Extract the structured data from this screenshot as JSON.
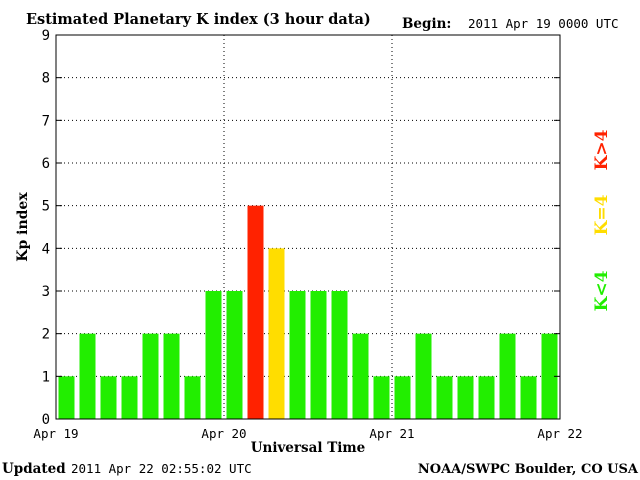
{
  "header": {
    "title": "Estimated Planetary K index (3 hour data)",
    "begin_label": "Begin:",
    "begin_value": "2011 Apr 19 0000 UTC"
  },
  "footer": {
    "updated_label": "Updated",
    "updated_value": "2011 Apr 22 02:55:02 UTC",
    "credit": "NOAA/SWPC Boulder, CO USA"
  },
  "legend": {
    "gt4": "K>4",
    "eq4": "K=4",
    "lt4": "K<4"
  },
  "colors": {
    "lt4": "#22ee00",
    "eq4": "#ffdd00",
    "gt4": "#ff2200",
    "axis": "#000000",
    "grid": "#000000"
  },
  "chart_data": {
    "type": "bar",
    "xlabel": "Universal Time",
    "ylabel": "Kp index",
    "ylim": [
      0,
      9
    ],
    "yticks": [
      0,
      1,
      2,
      3,
      4,
      5,
      6,
      7,
      8,
      9
    ],
    "xticks": [
      "Apr 19",
      "Apr 20",
      "Apr 21",
      "Apr 22"
    ],
    "grid": true,
    "values": [
      1,
      2,
      1,
      1,
      2,
      2,
      1,
      3,
      3,
      5,
      4,
      3,
      3,
      3,
      2,
      1,
      1,
      2,
      1,
      1,
      1,
      2,
      1,
      2
    ]
  }
}
